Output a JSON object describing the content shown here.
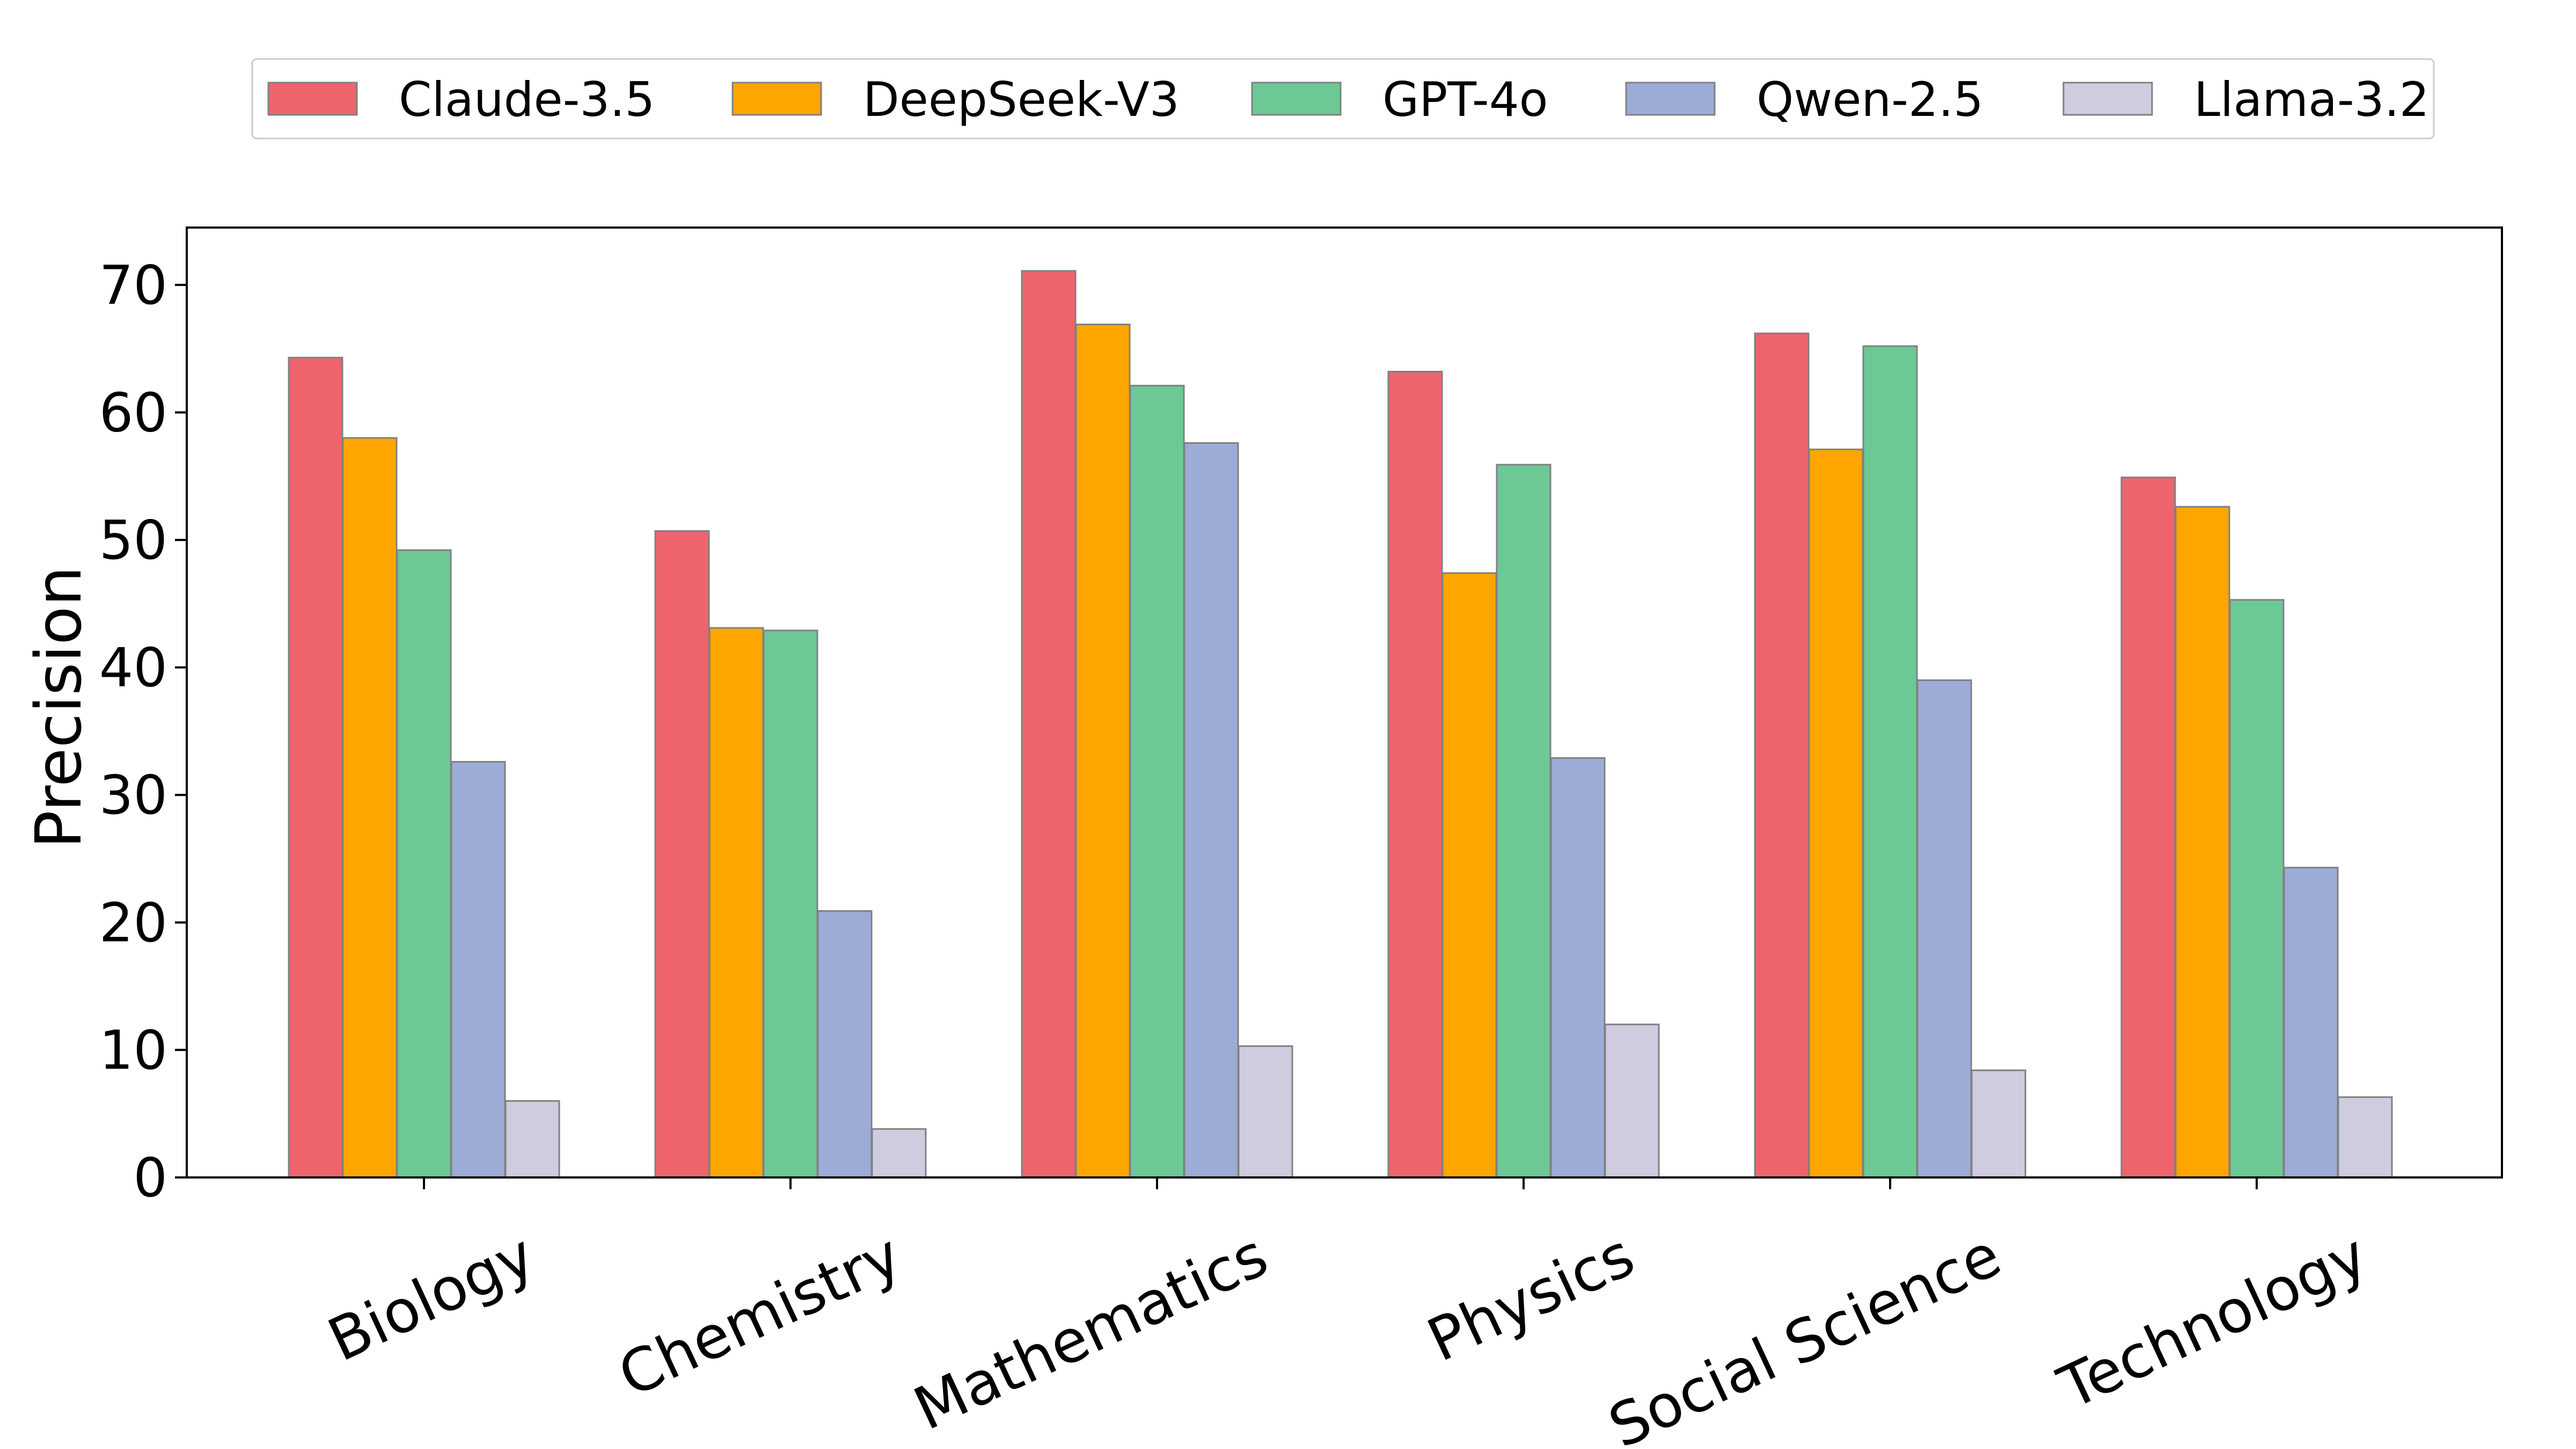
{
  "chart_data": {
    "type": "bar",
    "title": "",
    "xlabel": "",
    "ylabel": "Precision",
    "ylim": [
      0,
      74.5
    ],
    "yticks": [
      0,
      10,
      20,
      30,
      40,
      50,
      60,
      70
    ],
    "grid": false,
    "legend_position": "top-center",
    "categories": [
      "Biology",
      "Chemistry",
      "Mathematics",
      "Physics",
      "Social Science",
      "Technology"
    ],
    "series": [
      {
        "name": "Claude-3.5",
        "color": "#EE646D",
        "values": [
          64.3,
          50.7,
          71.1,
          63.2,
          66.2,
          54.9
        ]
      },
      {
        "name": "DeepSeek-V3",
        "color": "#FFA500",
        "values": [
          58.0,
          43.1,
          66.9,
          47.4,
          57.1,
          52.6
        ]
      },
      {
        "name": "GPT-4o",
        "color": "#6CC996",
        "values": [
          49.2,
          42.9,
          62.1,
          55.9,
          65.2,
          45.3
        ]
      },
      {
        "name": "Qwen-2.5",
        "color": "#9DACD6",
        "values": [
          32.6,
          20.9,
          57.6,
          32.9,
          39.0,
          24.3
        ]
      },
      {
        "name": "Llama-3.2",
        "color": "#CFCCE0",
        "values": [
          6.0,
          3.8,
          10.3,
          12.0,
          8.4,
          6.3
        ]
      }
    ]
  }
}
